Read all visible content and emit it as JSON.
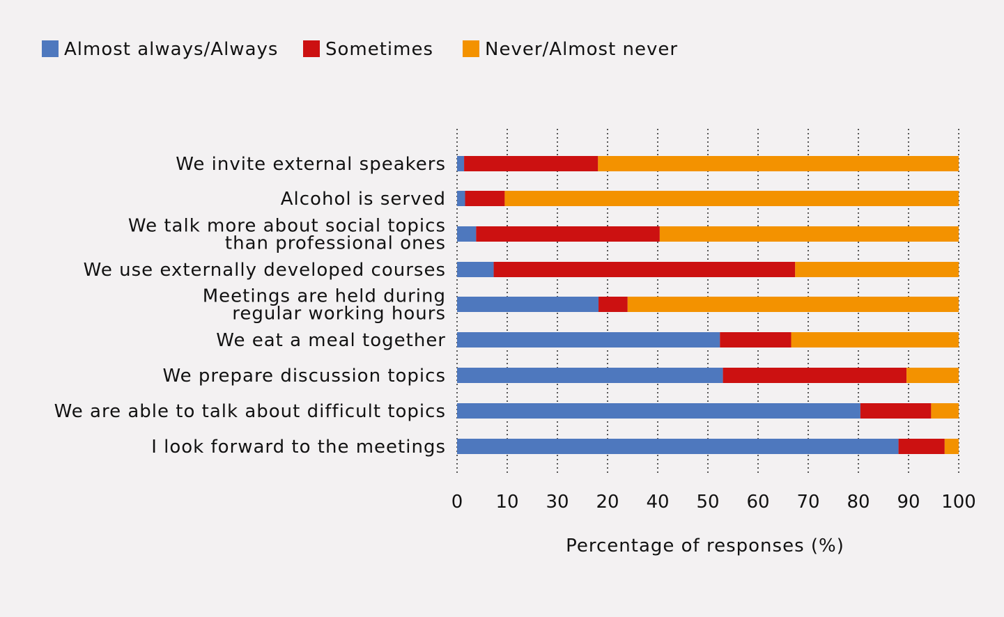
{
  "chart_data": {
    "type": "bar",
    "orientation": "horizontal",
    "stacked": true,
    "categories": [
      "We invite external speakers",
      "Alcohol is served",
      "We talk more about social topics than professional ones",
      "We use externally developed courses",
      "Meetings are held during regular working hours",
      "We eat a meal together",
      "We prepare discussion topics",
      "We are able to talk about difficult topics",
      "I look forward to the meetings"
    ],
    "category_lines": [
      [
        "We invite external speakers"
      ],
      [
        "Alcohol is served"
      ],
      [
        "We talk more about social topics",
        "than professional ones"
      ],
      [
        "We use externally developed courses"
      ],
      [
        "Meetings are held during",
        "regular working hours"
      ],
      [
        "We eat a meal together"
      ],
      [
        "We prepare discussion topics"
      ],
      [
        "We are able to talk about difficult topics"
      ],
      [
        "I look forward to the meetings"
      ]
    ],
    "series": [
      {
        "name": "Almost always/Always",
        "color": "#4e78be",
        "values": [
          1.4,
          1.6,
          3.8,
          7.3,
          28.2,
          52.4,
          53.0,
          80.4,
          88.0
        ]
      },
      {
        "name": "Sometimes",
        "color": "#cc1111",
        "values": [
          26.7,
          7.9,
          36.6,
          60.1,
          5.8,
          14.2,
          36.6,
          14.1,
          9.2
        ]
      },
      {
        "name": "Never/Almost never",
        "color": "#f39200",
        "values": [
          71.9,
          90.5,
          59.6,
          32.6,
          66.0,
          33.4,
          10.4,
          5.5,
          2.8
        ]
      }
    ],
    "tick_labels": [
      "0",
      "10",
      "30",
      "20",
      "40",
      "50",
      "60",
      "70",
      "80",
      "90",
      "100"
    ],
    "xlabel": "Percentage of responses (%)",
    "xlim": [
      0,
      100
    ],
    "grid": "vertical dotted",
    "legend": "top-left"
  }
}
